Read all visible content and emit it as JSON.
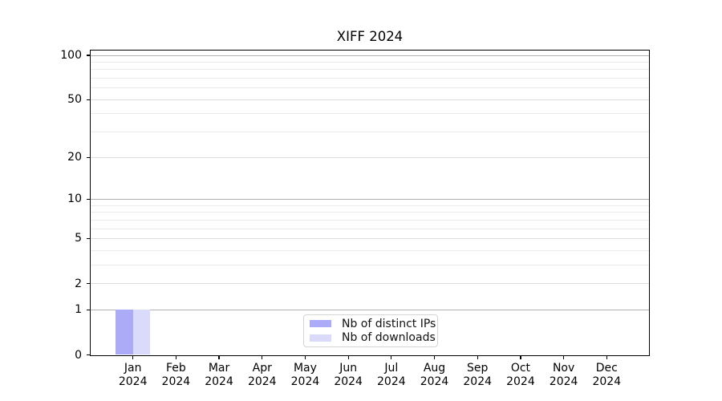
{
  "chart_data": {
    "type": "bar",
    "title": "XIFF 2024",
    "categories": [
      "Jan",
      "Feb",
      "Mar",
      "Apr",
      "May",
      "Jun",
      "Jul",
      "Aug",
      "Sep",
      "Oct",
      "Nov",
      "Dec"
    ],
    "category_year": "2024",
    "series": [
      {
        "name": "Nb of distinct IPs",
        "color": "#ababf8",
        "values": [
          1,
          0,
          0,
          0,
          0,
          0,
          0,
          0,
          0,
          0,
          0,
          0
        ]
      },
      {
        "name": "Nb of downloads",
        "color": "#dadafa",
        "values": [
          1,
          0,
          0,
          0,
          0,
          0,
          0,
          0,
          0,
          0,
          0,
          0
        ]
      }
    ],
    "yscale": "log1p",
    "ylim": [
      0,
      110
    ],
    "yticks": [
      100,
      50,
      20,
      10,
      5,
      2,
      1,
      0
    ],
    "grid": {
      "major": [
        1,
        10,
        100
      ],
      "mid": [
        2,
        5,
        20,
        50
      ],
      "minor": [
        3,
        4,
        6,
        7,
        8,
        9,
        30,
        40,
        60,
        70,
        80,
        90
      ]
    },
    "legend": {
      "position": "lower-center"
    },
    "axis_color": "#000000"
  }
}
